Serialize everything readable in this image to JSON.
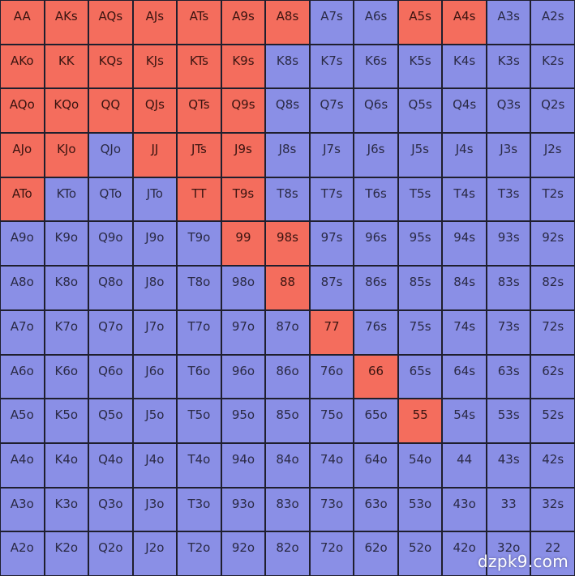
{
  "colors": {
    "raise": "#f46d5d",
    "fold": "#8a8fe6"
  },
  "grid": [
    [
      {
        "label": "AA",
        "action": "raise"
      },
      {
        "label": "AKs",
        "action": "raise"
      },
      {
        "label": "AQs",
        "action": "raise"
      },
      {
        "label": "AJs",
        "action": "raise"
      },
      {
        "label": "ATs",
        "action": "raise"
      },
      {
        "label": "A9s",
        "action": "raise"
      },
      {
        "label": "A8s",
        "action": "raise"
      },
      {
        "label": "A7s",
        "action": "fold"
      },
      {
        "label": "A6s",
        "action": "fold"
      },
      {
        "label": "A5s",
        "action": "raise"
      },
      {
        "label": "A4s",
        "action": "raise"
      },
      {
        "label": "A3s",
        "action": "fold"
      },
      {
        "label": "A2s",
        "action": "fold"
      }
    ],
    [
      {
        "label": "AKo",
        "action": "raise"
      },
      {
        "label": "KK",
        "action": "raise"
      },
      {
        "label": "KQs",
        "action": "raise"
      },
      {
        "label": "KJs",
        "action": "raise"
      },
      {
        "label": "KTs",
        "action": "raise"
      },
      {
        "label": "K9s",
        "action": "raise"
      },
      {
        "label": "K8s",
        "action": "fold"
      },
      {
        "label": "K7s",
        "action": "fold"
      },
      {
        "label": "K6s",
        "action": "fold"
      },
      {
        "label": "K5s",
        "action": "fold"
      },
      {
        "label": "K4s",
        "action": "fold"
      },
      {
        "label": "K3s",
        "action": "fold"
      },
      {
        "label": "K2s",
        "action": "fold"
      }
    ],
    [
      {
        "label": "AQo",
        "action": "raise"
      },
      {
        "label": "KQo",
        "action": "raise"
      },
      {
        "label": "QQ",
        "action": "raise"
      },
      {
        "label": "QJs",
        "action": "raise"
      },
      {
        "label": "QTs",
        "action": "raise"
      },
      {
        "label": "Q9s",
        "action": "raise"
      },
      {
        "label": "Q8s",
        "action": "fold"
      },
      {
        "label": "Q7s",
        "action": "fold"
      },
      {
        "label": "Q6s",
        "action": "fold"
      },
      {
        "label": "Q5s",
        "action": "fold"
      },
      {
        "label": "Q4s",
        "action": "fold"
      },
      {
        "label": "Q3s",
        "action": "fold"
      },
      {
        "label": "Q2s",
        "action": "fold"
      }
    ],
    [
      {
        "label": "AJo",
        "action": "raise"
      },
      {
        "label": "KJo",
        "action": "raise"
      },
      {
        "label": "QJo",
        "action": "fold"
      },
      {
        "label": "JJ",
        "action": "raise"
      },
      {
        "label": "JTs",
        "action": "raise"
      },
      {
        "label": "J9s",
        "action": "raise"
      },
      {
        "label": "J8s",
        "action": "fold"
      },
      {
        "label": "J7s",
        "action": "fold"
      },
      {
        "label": "J6s",
        "action": "fold"
      },
      {
        "label": "J5s",
        "action": "fold"
      },
      {
        "label": "J4s",
        "action": "fold"
      },
      {
        "label": "J3s",
        "action": "fold"
      },
      {
        "label": "J2s",
        "action": "fold"
      }
    ],
    [
      {
        "label": "ATo",
        "action": "raise"
      },
      {
        "label": "KTo",
        "action": "fold"
      },
      {
        "label": "QTo",
        "action": "fold"
      },
      {
        "label": "JTo",
        "action": "fold"
      },
      {
        "label": "TT",
        "action": "raise"
      },
      {
        "label": "T9s",
        "action": "raise"
      },
      {
        "label": "T8s",
        "action": "fold"
      },
      {
        "label": "T7s",
        "action": "fold"
      },
      {
        "label": "T6s",
        "action": "fold"
      },
      {
        "label": "T5s",
        "action": "fold"
      },
      {
        "label": "T4s",
        "action": "fold"
      },
      {
        "label": "T3s",
        "action": "fold"
      },
      {
        "label": "T2s",
        "action": "fold"
      }
    ],
    [
      {
        "label": "A9o",
        "action": "fold"
      },
      {
        "label": "K9o",
        "action": "fold"
      },
      {
        "label": "Q9o",
        "action": "fold"
      },
      {
        "label": "J9o",
        "action": "fold"
      },
      {
        "label": "T9o",
        "action": "fold"
      },
      {
        "label": "99",
        "action": "raise"
      },
      {
        "label": "98s",
        "action": "raise"
      },
      {
        "label": "97s",
        "action": "fold"
      },
      {
        "label": "96s",
        "action": "fold"
      },
      {
        "label": "95s",
        "action": "fold"
      },
      {
        "label": "94s",
        "action": "fold"
      },
      {
        "label": "93s",
        "action": "fold"
      },
      {
        "label": "92s",
        "action": "fold"
      }
    ],
    [
      {
        "label": "A8o",
        "action": "fold"
      },
      {
        "label": "K8o",
        "action": "fold"
      },
      {
        "label": "Q8o",
        "action": "fold"
      },
      {
        "label": "J8o",
        "action": "fold"
      },
      {
        "label": "T8o",
        "action": "fold"
      },
      {
        "label": "98o",
        "action": "fold"
      },
      {
        "label": "88",
        "action": "raise"
      },
      {
        "label": "87s",
        "action": "fold"
      },
      {
        "label": "86s",
        "action": "fold"
      },
      {
        "label": "85s",
        "action": "fold"
      },
      {
        "label": "84s",
        "action": "fold"
      },
      {
        "label": "83s",
        "action": "fold"
      },
      {
        "label": "82s",
        "action": "fold"
      }
    ],
    [
      {
        "label": "A7o",
        "action": "fold"
      },
      {
        "label": "K7o",
        "action": "fold"
      },
      {
        "label": "Q7o",
        "action": "fold"
      },
      {
        "label": "J7o",
        "action": "fold"
      },
      {
        "label": "T7o",
        "action": "fold"
      },
      {
        "label": "97o",
        "action": "fold"
      },
      {
        "label": "87o",
        "action": "fold"
      },
      {
        "label": "77",
        "action": "raise"
      },
      {
        "label": "76s",
        "action": "fold"
      },
      {
        "label": "75s",
        "action": "fold"
      },
      {
        "label": "74s",
        "action": "fold"
      },
      {
        "label": "73s",
        "action": "fold"
      },
      {
        "label": "72s",
        "action": "fold"
      }
    ],
    [
      {
        "label": "A6o",
        "action": "fold"
      },
      {
        "label": "K6o",
        "action": "fold"
      },
      {
        "label": "Q6o",
        "action": "fold"
      },
      {
        "label": "J6o",
        "action": "fold"
      },
      {
        "label": "T6o",
        "action": "fold"
      },
      {
        "label": "96o",
        "action": "fold"
      },
      {
        "label": "86o",
        "action": "fold"
      },
      {
        "label": "76o",
        "action": "fold"
      },
      {
        "label": "66",
        "action": "raise"
      },
      {
        "label": "65s",
        "action": "fold"
      },
      {
        "label": "64s",
        "action": "fold"
      },
      {
        "label": "63s",
        "action": "fold"
      },
      {
        "label": "62s",
        "action": "fold"
      }
    ],
    [
      {
        "label": "A5o",
        "action": "fold"
      },
      {
        "label": "K5o",
        "action": "fold"
      },
      {
        "label": "Q5o",
        "action": "fold"
      },
      {
        "label": "J5o",
        "action": "fold"
      },
      {
        "label": "T5o",
        "action": "fold"
      },
      {
        "label": "95o",
        "action": "fold"
      },
      {
        "label": "85o",
        "action": "fold"
      },
      {
        "label": "75o",
        "action": "fold"
      },
      {
        "label": "65o",
        "action": "fold"
      },
      {
        "label": "55",
        "action": "raise"
      },
      {
        "label": "54s",
        "action": "fold"
      },
      {
        "label": "53s",
        "action": "fold"
      },
      {
        "label": "52s",
        "action": "fold"
      }
    ],
    [
      {
        "label": "A4o",
        "action": "fold"
      },
      {
        "label": "K4o",
        "action": "fold"
      },
      {
        "label": "Q4o",
        "action": "fold"
      },
      {
        "label": "J4o",
        "action": "fold"
      },
      {
        "label": "T4o",
        "action": "fold"
      },
      {
        "label": "94o",
        "action": "fold"
      },
      {
        "label": "84o",
        "action": "fold"
      },
      {
        "label": "74o",
        "action": "fold"
      },
      {
        "label": "64o",
        "action": "fold"
      },
      {
        "label": "54o",
        "action": "fold"
      },
      {
        "label": "44",
        "action": "fold"
      },
      {
        "label": "43s",
        "action": "fold"
      },
      {
        "label": "42s",
        "action": "fold"
      }
    ],
    [
      {
        "label": "A3o",
        "action": "fold"
      },
      {
        "label": "K3o",
        "action": "fold"
      },
      {
        "label": "Q3o",
        "action": "fold"
      },
      {
        "label": "J3o",
        "action": "fold"
      },
      {
        "label": "T3o",
        "action": "fold"
      },
      {
        "label": "93o",
        "action": "fold"
      },
      {
        "label": "83o",
        "action": "fold"
      },
      {
        "label": "73o",
        "action": "fold"
      },
      {
        "label": "63o",
        "action": "fold"
      },
      {
        "label": "53o",
        "action": "fold"
      },
      {
        "label": "43o",
        "action": "fold"
      },
      {
        "label": "33",
        "action": "fold"
      },
      {
        "label": "32s",
        "action": "fold"
      }
    ],
    [
      {
        "label": "A2o",
        "action": "fold"
      },
      {
        "label": "K2o",
        "action": "fold"
      },
      {
        "label": "Q2o",
        "action": "fold"
      },
      {
        "label": "J2o",
        "action": "fold"
      },
      {
        "label": "T2o",
        "action": "fold"
      },
      {
        "label": "92o",
        "action": "fold"
      },
      {
        "label": "82o",
        "action": "fold"
      },
      {
        "label": "72o",
        "action": "fold"
      },
      {
        "label": "62o",
        "action": "fold"
      },
      {
        "label": "52o",
        "action": "fold"
      },
      {
        "label": "42o",
        "action": "fold"
      },
      {
        "label": "32o",
        "action": "fold"
      },
      {
        "label": "22",
        "action": "fold"
      }
    ]
  ],
  "watermark": "dzpk9.com"
}
